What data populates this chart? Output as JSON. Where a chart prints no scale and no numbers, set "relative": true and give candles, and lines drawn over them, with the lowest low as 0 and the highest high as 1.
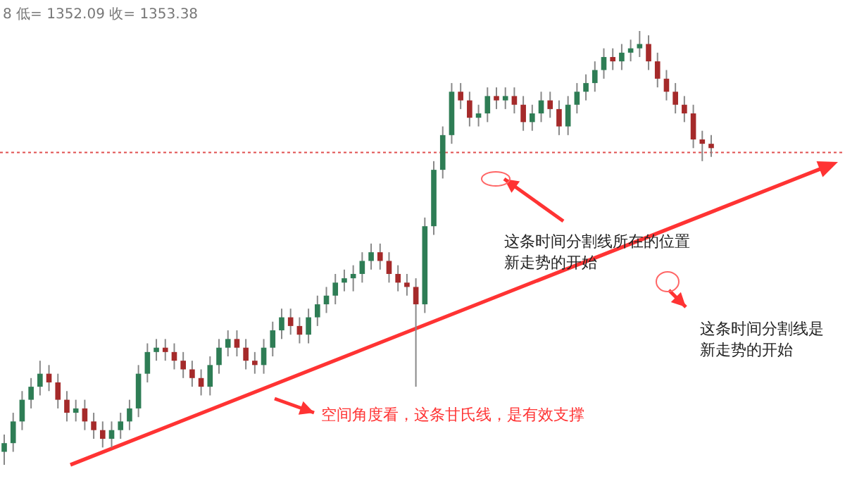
{
  "chart_data": {
    "type": "candlestick",
    "relative": true,
    "categories": [
      null,
      null,
      null,
      null,
      null,
      null,
      null,
      null,
      null,
      null,
      null,
      null,
      null,
      null,
      null,
      null,
      null,
      null,
      null,
      null,
      null,
      null,
      null,
      null,
      null,
      null,
      null,
      null,
      null,
      null,
      null,
      null,
      null,
      null,
      null,
      null,
      null,
      null,
      null,
      null,
      null,
      null,
      null,
      null,
      null,
      null,
      null,
      null,
      null,
      null,
      null,
      null,
      null,
      null,
      null,
      null,
      null,
      null,
      null,
      null,
      null,
      null,
      null,
      null,
      null,
      null,
      null,
      null,
      null,
      null,
      null,
      null,
      null,
      null,
      null,
      null,
      null,
      null,
      null,
      null
    ],
    "ohlc": [
      [
        0.03,
        0.07,
        0.0,
        0.05
      ],
      [
        0.05,
        0.12,
        0.03,
        0.1
      ],
      [
        0.1,
        0.17,
        0.08,
        0.15
      ],
      [
        0.15,
        0.2,
        0.13,
        0.18
      ],
      [
        0.18,
        0.24,
        0.16,
        0.21
      ],
      [
        0.21,
        0.23,
        0.17,
        0.19
      ],
      [
        0.19,
        0.21,
        0.13,
        0.15
      ],
      [
        0.15,
        0.17,
        0.1,
        0.12
      ],
      [
        0.12,
        0.15,
        0.1,
        0.13
      ],
      [
        0.13,
        0.15,
        0.08,
        0.1
      ],
      [
        0.1,
        0.12,
        0.06,
        0.08
      ],
      [
        0.08,
        0.1,
        0.04,
        0.06
      ],
      [
        0.06,
        0.1,
        0.04,
        0.08
      ],
      [
        0.08,
        0.12,
        0.06,
        0.1
      ],
      [
        0.1,
        0.15,
        0.08,
        0.13
      ],
      [
        0.13,
        0.23,
        0.11,
        0.21
      ],
      [
        0.21,
        0.28,
        0.19,
        0.26
      ],
      [
        0.26,
        0.29,
        0.24,
        0.27
      ],
      [
        0.27,
        0.29,
        0.24,
        0.26
      ],
      [
        0.26,
        0.28,
        0.22,
        0.24
      ],
      [
        0.24,
        0.26,
        0.2,
        0.22
      ],
      [
        0.22,
        0.24,
        0.18,
        0.2
      ],
      [
        0.2,
        0.22,
        0.16,
        0.18
      ],
      [
        0.18,
        0.25,
        0.16,
        0.23
      ],
      [
        0.23,
        0.29,
        0.21,
        0.27
      ],
      [
        0.27,
        0.31,
        0.25,
        0.29
      ],
      [
        0.29,
        0.31,
        0.25,
        0.27
      ],
      [
        0.27,
        0.29,
        0.22,
        0.24
      ],
      [
        0.24,
        0.26,
        0.21,
        0.23
      ],
      [
        0.23,
        0.29,
        0.21,
        0.27
      ],
      [
        0.27,
        0.33,
        0.25,
        0.31
      ],
      [
        0.31,
        0.36,
        0.29,
        0.34
      ],
      [
        0.34,
        0.36,
        0.3,
        0.32
      ],
      [
        0.32,
        0.34,
        0.28,
        0.3
      ],
      [
        0.3,
        0.36,
        0.28,
        0.34
      ],
      [
        0.34,
        0.39,
        0.32,
        0.37
      ],
      [
        0.37,
        0.41,
        0.35,
        0.39
      ],
      [
        0.39,
        0.44,
        0.37,
        0.42
      ],
      [
        0.42,
        0.45,
        0.4,
        0.43
      ],
      [
        0.43,
        0.46,
        0.4,
        0.44
      ],
      [
        0.44,
        0.49,
        0.42,
        0.47
      ],
      [
        0.47,
        0.51,
        0.45,
        0.49
      ],
      [
        0.49,
        0.51,
        0.45,
        0.47
      ],
      [
        0.47,
        0.49,
        0.42,
        0.44
      ],
      [
        0.44,
        0.46,
        0.4,
        0.42
      ],
      [
        0.42,
        0.44,
        0.39,
        0.41
      ],
      [
        0.41,
        0.43,
        0.18,
        0.37
      ],
      [
        0.37,
        0.57,
        0.35,
        0.55
      ],
      [
        0.55,
        0.7,
        0.53,
        0.68
      ],
      [
        0.68,
        0.78,
        0.66,
        0.76
      ],
      [
        0.76,
        0.88,
        0.74,
        0.86
      ],
      [
        0.86,
        0.88,
        0.82,
        0.84
      ],
      [
        0.84,
        0.86,
        0.78,
        0.8
      ],
      [
        0.8,
        0.83,
        0.78,
        0.81
      ],
      [
        0.81,
        0.87,
        0.79,
        0.85
      ],
      [
        0.85,
        0.87,
        0.82,
        0.84
      ],
      [
        0.84,
        0.87,
        0.82,
        0.85
      ],
      [
        0.85,
        0.87,
        0.81,
        0.83
      ],
      [
        0.83,
        0.85,
        0.77,
        0.79
      ],
      [
        0.79,
        0.83,
        0.77,
        0.81
      ],
      [
        0.81,
        0.86,
        0.79,
        0.84
      ],
      [
        0.84,
        0.86,
        0.8,
        0.82
      ],
      [
        0.82,
        0.84,
        0.76,
        0.78
      ],
      [
        0.78,
        0.85,
        0.76,
        0.83
      ],
      [
        0.83,
        0.88,
        0.81,
        0.86
      ],
      [
        0.86,
        0.9,
        0.84,
        0.88
      ],
      [
        0.88,
        0.93,
        0.86,
        0.91
      ],
      [
        0.91,
        0.96,
        0.89,
        0.94
      ],
      [
        0.94,
        0.96,
        0.91,
        0.93
      ],
      [
        0.93,
        0.97,
        0.91,
        0.95
      ],
      [
        0.95,
        0.98,
        0.93,
        0.96
      ],
      [
        0.96,
        1.0,
        0.94,
        0.97
      ],
      [
        0.97,
        0.99,
        0.91,
        0.93
      ],
      [
        0.93,
        0.95,
        0.87,
        0.89
      ],
      [
        0.89,
        0.91,
        0.84,
        0.86
      ],
      [
        0.86,
        0.88,
        0.81,
        0.83
      ],
      [
        0.83,
        0.85,
        0.79,
        0.81
      ],
      [
        0.81,
        0.83,
        0.73,
        0.75
      ],
      [
        0.75,
        0.77,
        0.7,
        0.74
      ],
      [
        0.74,
        0.76,
        0.71,
        0.73
      ]
    ],
    "colors": [
      "#2e7d55",
      "#2e7d55",
      "#2e7d55",
      "#2e7d55",
      "#2e7d55",
      "#a52a2a",
      "#a52a2a",
      "#a52a2a",
      "#2e7d55",
      "#a52a2a",
      "#a52a2a",
      "#a52a2a",
      "#2e7d55",
      "#2e7d55",
      "#2e7d55",
      "#2e7d55",
      "#2e7d55",
      "#2e7d55",
      "#a52a2a",
      "#a52a2a",
      "#a52a2a",
      "#a52a2a",
      "#a52a2a",
      "#2e7d55",
      "#2e7d55",
      "#2e7d55",
      "#a52a2a",
      "#a52a2a",
      "#a52a2a",
      "#2e7d55",
      "#2e7d55",
      "#2e7d55",
      "#a52a2a",
      "#a52a2a",
      "#2e7d55",
      "#2e7d55",
      "#2e7d55",
      "#2e7d55",
      "#2e7d55",
      "#2e7d55",
      "#2e7d55",
      "#2e7d55",
      "#a52a2a",
      "#a52a2a",
      "#a52a2a",
      "#a52a2a",
      "#a52a2a",
      "#2e7d55",
      "#2e7d55",
      "#2e7d55",
      "#2e7d55",
      "#a52a2a",
      "#a52a2a",
      "#2e7d55",
      "#2e7d55",
      "#a52a2a",
      "#2e7d55",
      "#a52a2a",
      "#a52a2a",
      "#2e7d55",
      "#2e7d55",
      "#a52a2a",
      "#a52a2a",
      "#2e7d55",
      "#2e7d55",
      "#2e7d55",
      "#2e7d55",
      "#2e7d55",
      "#a52a2a",
      "#2e7d55",
      "#2e7d55",
      "#2e7d55",
      "#a52a2a",
      "#a52a2a",
      "#a52a2a",
      "#a52a2a",
      "#a52a2a",
      "#a52a2a",
      "#a52a2a",
      "#a52a2a"
    ],
    "ref_lines": [
      {
        "axis": "y",
        "value": 0.72,
        "color": "#e05050",
        "line_style": "dotted"
      }
    ],
    "annotations": [
      "8 低= 1352.09 收= 1353.38",
      "这条时间分割线所在的位置新走势的开始",
      "这条时间分割线是新走势的开始",
      "空间角度看，这条甘氏线，是有效支撑"
    ]
  }
}
